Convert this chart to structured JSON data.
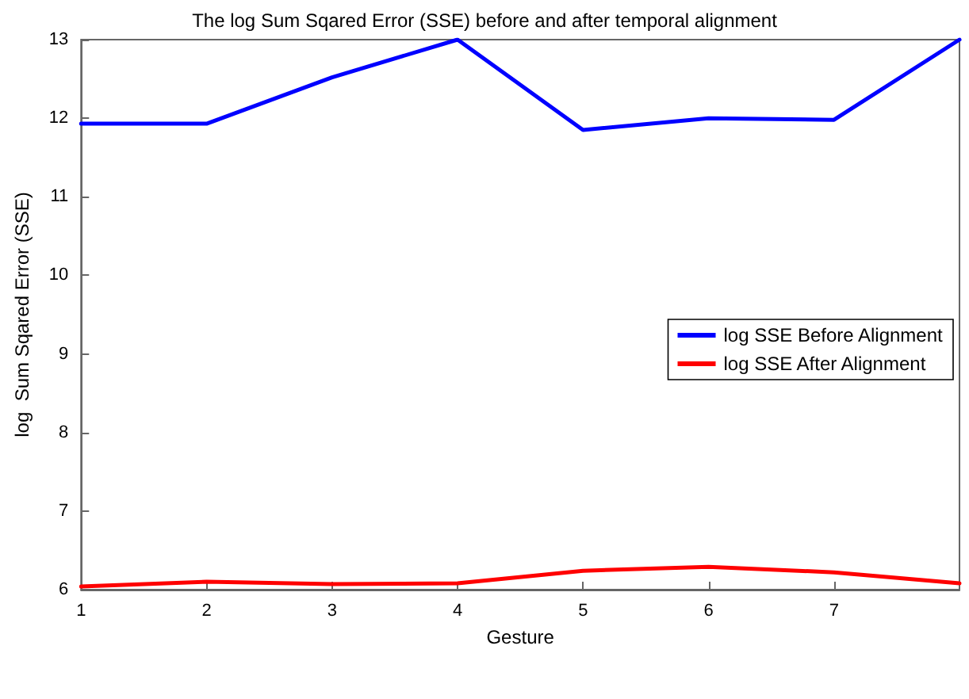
{
  "chart_data": {
    "type": "line",
    "title": "The log Sum Sqared Error (SSE) before and after temporal alignment",
    "xlabel": "Gesture",
    "ylabel": "log  Sum Sqared Error (SSE)",
    "x": [
      1,
      2,
      3,
      4,
      5,
      6,
      7,
      8
    ],
    "series": [
      {
        "name": "log SSE Before Alignment",
        "color": "#0000ff",
        "values": [
          11.93,
          11.93,
          12.52,
          13.0,
          11.85,
          12.0,
          11.98,
          13.0
        ]
      },
      {
        "name": "log SSE After Alignment",
        "color": "#ff0000",
        "values": [
          6.04,
          6.1,
          6.07,
          6.08,
          6.24,
          6.29,
          6.22,
          6.08
        ]
      }
    ],
    "xlim": [
      1,
      8
    ],
    "xticks": [
      1,
      2,
      3,
      4,
      5,
      6,
      7
    ],
    "ylim": [
      6,
      13
    ],
    "yticks": [
      6,
      7,
      8,
      9,
      10,
      11,
      12,
      13
    ],
    "grid": false,
    "legend": "right",
    "marker": "none",
    "line_style": "solid"
  }
}
